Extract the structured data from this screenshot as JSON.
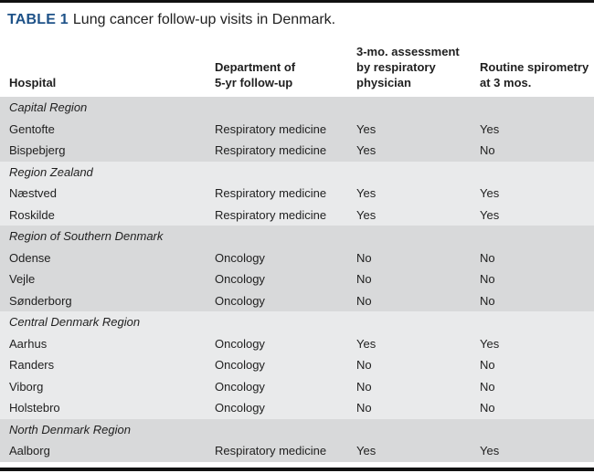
{
  "caption": {
    "label": "TABLE 1",
    "text": "Lung cancer follow-up visits in Denmark."
  },
  "table": {
    "columns": [
      "Hospital",
      "Department of\n5-yr follow-up",
      "3-mo. assessment\nby respiratory\nphysician",
      "Routine spirometry\nat 3 mos."
    ],
    "sections": [
      {
        "region": "Capital Region",
        "shaded": true,
        "rows": [
          [
            "Gentofte",
            "Respiratory medicine",
            "Yes",
            "Yes"
          ],
          [
            "Bispebjerg",
            "Respiratory medicine",
            "Yes",
            "No"
          ]
        ]
      },
      {
        "region": "Region Zealand",
        "shaded": false,
        "rows": [
          [
            "Næstved",
            "Respiratory medicine",
            "Yes",
            "Yes"
          ],
          [
            "Roskilde",
            "Respiratory medicine",
            "Yes",
            "Yes"
          ]
        ]
      },
      {
        "region": "Region of Southern Denmark",
        "shaded": true,
        "rows": [
          [
            "Odense",
            "Oncology",
            "No",
            "No"
          ],
          [
            "Vejle",
            "Oncology",
            "No",
            "No"
          ],
          [
            "Sønderborg",
            "Oncology",
            "No",
            "No"
          ]
        ]
      },
      {
        "region": "Central Denmark Region",
        "shaded": false,
        "rows": [
          [
            "Aarhus",
            "Oncology",
            "Yes",
            "Yes"
          ],
          [
            "Randers",
            "Oncology",
            "No",
            "No"
          ],
          [
            "Viborg",
            "Oncology",
            "No",
            "No"
          ],
          [
            "Holstebro",
            "Oncology",
            "No",
            "No"
          ]
        ]
      },
      {
        "region": "North Denmark Region",
        "shaded": true,
        "rows": [
          [
            "Aalborg",
            "Respiratory medicine",
            "Yes",
            "Yes"
          ]
        ]
      }
    ]
  },
  "colors": {
    "accent": "#1e5288",
    "band_dark": "#d8d9da",
    "band_light": "#e9eaeb",
    "rule": "#111111"
  }
}
